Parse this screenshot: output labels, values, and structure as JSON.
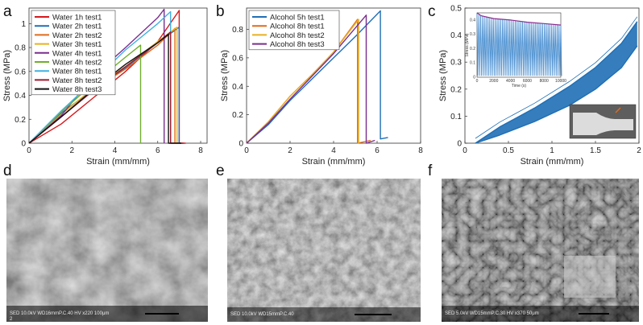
{
  "colors": {
    "red": "#d7191c",
    "blue": "#1f6fb5",
    "orange": "#e06a1a",
    "yellow": "#e8b020",
    "purple": "#7b2d8e",
    "green": "#6fae2c",
    "cyan": "#41b1e0",
    "maroon": "#9e1b32",
    "black": "#111111"
  },
  "chart_data": [
    {
      "panel": "a",
      "type": "line",
      "title": "",
      "xlabel": "Strain (mm/mm)",
      "ylabel": "Stress (MPa)",
      "xlim": [
        0,
        8.3
      ],
      "ylim": [
        0,
        1.13
      ],
      "xticks": [
        "0",
        "2",
        "4",
        "6",
        "8"
      ],
      "yticks": [
        "0",
        "0.2",
        "0.4",
        "0.6",
        "0.8",
        "1"
      ],
      "legend_position": "top-left",
      "series": [
        {
          "name": "Water 1h test1",
          "color": "red",
          "x": [
            0,
            1.5,
            3,
            4.5,
            6,
            7.0,
            7.0,
            7.3
          ],
          "y": [
            0,
            0.16,
            0.38,
            0.6,
            0.85,
            1.11,
            0.0,
            0.0
          ]
        },
        {
          "name": "Water 2h test1",
          "color": "blue",
          "x": [
            0,
            1.5,
            3,
            4.5,
            6,
            7.0,
            7.0
          ],
          "y": [
            0,
            0.25,
            0.45,
            0.63,
            0.84,
            0.97,
            0.0
          ]
        },
        {
          "name": "Water 2h test2",
          "color": "orange",
          "x": [
            0,
            1.5,
            3,
            4.5,
            6,
            6.8,
            6.8
          ],
          "y": [
            0,
            0.22,
            0.45,
            0.62,
            0.82,
            0.96,
            0.0
          ]
        },
        {
          "name": "Water 3h test1",
          "color": "yellow",
          "x": [
            0,
            1.5,
            3,
            4.5,
            6,
            6.9,
            6.9
          ],
          "y": [
            0,
            0.24,
            0.46,
            0.64,
            0.85,
            0.97,
            0.0
          ]
        },
        {
          "name": "Water 4h test1",
          "color": "purple",
          "x": [
            0,
            1.5,
            3,
            4.5,
            6,
            6.3,
            6.3
          ],
          "y": [
            0,
            0.23,
            0.56,
            0.8,
            1.05,
            1.12,
            0.0
          ]
        },
        {
          "name": "Water 4h test2",
          "color": "green",
          "x": [
            0,
            1.5,
            3,
            4.5,
            5.2,
            5.2
          ],
          "y": [
            0,
            0.26,
            0.5,
            0.72,
            0.82,
            0.0
          ]
        },
        {
          "name": "Water 8h test1",
          "color": "cyan",
          "x": [
            0,
            1.5,
            3,
            4.5,
            6,
            6.6,
            6.6
          ],
          "y": [
            0,
            0.27,
            0.52,
            0.78,
            1.0,
            1.1,
            0.0
          ]
        },
        {
          "name": "Water 8h test2",
          "color": "maroon",
          "x": [
            0,
            1.5,
            3,
            4.5,
            6,
            6.6,
            6.6,
            7.2
          ],
          "y": [
            0,
            0.22,
            0.44,
            0.64,
            0.84,
            0.93,
            0.0,
            0.0
          ]
        },
        {
          "name": "Water 8h test3",
          "color": "black",
          "x": [
            0,
            1.5,
            3,
            4.5,
            6,
            6.5,
            6.5,
            7.1
          ],
          "y": [
            0,
            0.22,
            0.45,
            0.66,
            0.84,
            0.91,
            0.0,
            0.0
          ]
        }
      ]
    },
    {
      "panel": "b",
      "type": "line",
      "title": "",
      "xlabel": "Strain (mm/mm)",
      "ylabel": "Stress (MPa)",
      "xlim": [
        0,
        8
      ],
      "ylim": [
        0,
        0.95
      ],
      "xticks": [
        "0",
        "2",
        "4",
        "6",
        "8"
      ],
      "yticks": [
        "0",
        "0.2",
        "0.4",
        "0.6",
        "0.8"
      ],
      "legend_position": "top-left",
      "series": [
        {
          "name": "Alcohol 5h test1",
          "color": "blue",
          "x": [
            0,
            1,
            2,
            3,
            4,
            5,
            6.15,
            6.15,
            6.5
          ],
          "y": [
            0,
            0.13,
            0.3,
            0.45,
            0.6,
            0.75,
            0.93,
            0.03,
            0.04
          ]
        },
        {
          "name": "Alcohol 8h test1",
          "color": "orange",
          "x": [
            0,
            1,
            2,
            3,
            4,
            5.1,
            5.1,
            5.7
          ],
          "y": [
            0,
            0.15,
            0.33,
            0.48,
            0.64,
            0.87,
            0.0,
            0.02
          ]
        },
        {
          "name": "Alcohol 8h test2",
          "color": "yellow",
          "x": [
            0,
            1,
            2,
            3,
            4,
            5.15,
            5.15
          ],
          "y": [
            0,
            0.15,
            0.33,
            0.48,
            0.64,
            0.87,
            0.0
          ]
        },
        {
          "name": "Alcohol 8h test3",
          "color": "purple",
          "x": [
            0,
            1,
            2,
            3,
            4,
            5.5,
            5.5,
            5.9
          ],
          "y": [
            0,
            0.14,
            0.31,
            0.47,
            0.63,
            0.9,
            0.0,
            0.02
          ]
        }
      ]
    },
    {
      "panel": "c",
      "type": "line",
      "title": "",
      "xlabel": "Strain (mm/mm)",
      "ylabel": "Stress (MPa)",
      "xlim": [
        0,
        2
      ],
      "ylim": [
        0,
        0.5
      ],
      "xticks": [
        "0",
        "0.5",
        "1",
        "1.5",
        "2"
      ],
      "yticks": [
        "0",
        "0.1",
        "0.2",
        "0.3",
        "0.4",
        "0.5"
      ],
      "series": [
        {
          "name": "",
          "color": "blue",
          "x": [
            0.12,
            0.4,
            0.8,
            1.2,
            1.5,
            1.8,
            1.98
          ],
          "y": [
            0.0,
            0.06,
            0.13,
            0.21,
            0.28,
            0.37,
            0.45
          ]
        },
        {
          "name": "",
          "color": "blue",
          "x": [
            0.12,
            0.4,
            0.8,
            1.2,
            1.5,
            1.8,
            1.98
          ],
          "y": [
            0.0,
            0.03,
            0.08,
            0.14,
            0.2,
            0.28,
            0.36
          ]
        }
      ],
      "inset": {
        "type": "line",
        "ylabel": "Stress (MPa)",
        "xlabel": "Time (s)",
        "xticks": [
          "0",
          "2000",
          "4000",
          "6000",
          "8000",
          "10000"
        ],
        "yticks": [
          "0",
          "0.1",
          "0.2",
          "0.3",
          "0.4"
        ],
        "xlim": [
          0,
          10000
        ],
        "ylim": [
          0,
          0.45
        ],
        "peak_envelope": {
          "x": [
            0,
            500,
            2000,
            4000,
            6000,
            8000,
            10000
          ],
          "y": [
            0.45,
            0.43,
            0.41,
            0.4,
            0.385,
            0.375,
            0.365
          ]
        }
      }
    }
  ],
  "labels": {
    "a": "a",
    "b": "b",
    "c": "c",
    "d": "d",
    "e": "e",
    "f": "f",
    "sem_d": "SED 10.0kV WD16mmP.C.40 HV   x220     100μm",
    "sem_d2": "2",
    "sem_e": "SED 10.0kV WD15mmP.C.40",
    "sem_f": "SED 5.0kV  WD15mmP.C.30  HV    x370      50μm"
  }
}
